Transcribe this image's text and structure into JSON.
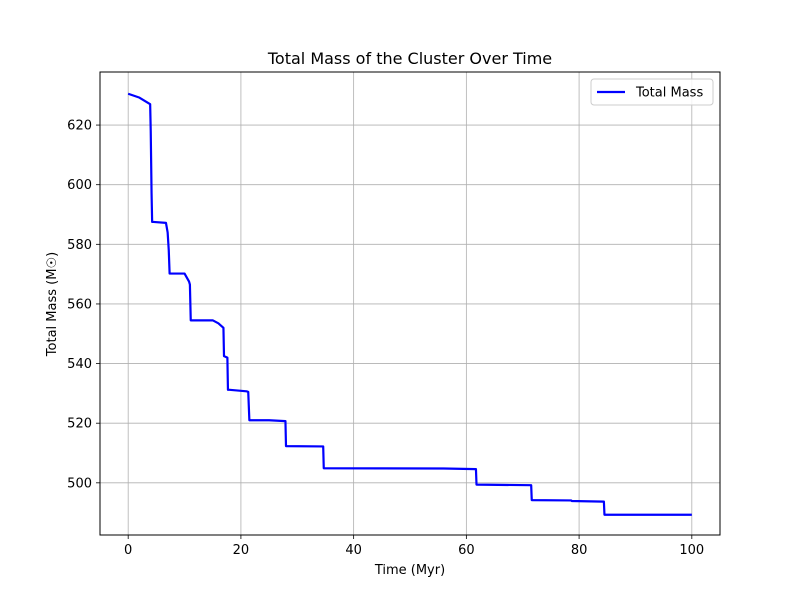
{
  "chart_data": {
    "type": "line",
    "title": "Total Mass of the Cluster Over Time",
    "xlabel": "Time (Myr)",
    "ylabel": "Total Mass (M☉)",
    "xlim": [
      -5,
      105
    ],
    "ylim": [
      482.5,
      637.8
    ],
    "xticks": [
      0,
      20,
      40,
      60,
      80,
      100
    ],
    "yticks": [
      500,
      520,
      540,
      560,
      580,
      600,
      620
    ],
    "grid": true,
    "legend_position": "top-right",
    "series": [
      {
        "name": "Total Mass",
        "color": "#0000ff",
        "x": [
          0,
          2,
          3.9,
          4.0,
          4.15,
          4.25,
          4.5,
          6.7,
          7.0,
          7.2,
          7.35,
          10.0,
          10.8,
          10.95,
          11.1,
          15.0,
          16.0,
          16.9,
          17.0,
          17.6,
          17.7,
          18.0,
          21.0,
          21.3,
          21.5,
          25.0,
          27.9,
          28.0,
          34.6,
          34.7,
          56.0,
          61.7,
          61.8,
          71.5,
          71.6,
          78.6,
          78.7,
          84.4,
          84.5,
          100
        ],
        "y": [
          630.5,
          629.2,
          627.0,
          618.0,
          597.0,
          587.5,
          587.5,
          587.2,
          584.0,
          578.0,
          570.2,
          570.2,
          567.5,
          566.5,
          554.5,
          554.5,
          553.5,
          552.0,
          542.5,
          542.0,
          531.2,
          531.2,
          530.7,
          530.5,
          521.0,
          521.0,
          520.7,
          512.3,
          512.2,
          504.9,
          504.8,
          504.6,
          499.4,
          499.2,
          494.2,
          494.1,
          493.9,
          493.7,
          489.3,
          489.3
        ]
      }
    ]
  }
}
